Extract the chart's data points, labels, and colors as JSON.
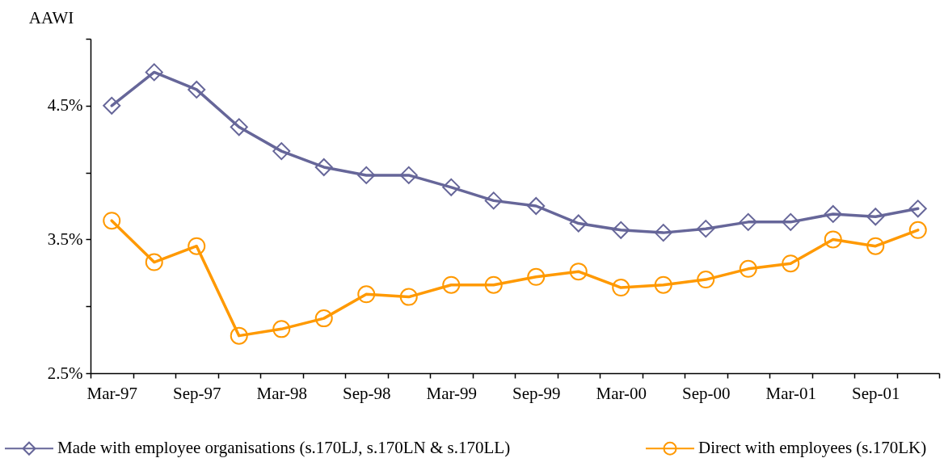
{
  "chart_data": {
    "type": "line",
    "ylabel": "AAWI",
    "categories": [
      "Mar-97",
      null,
      "Sep-97",
      null,
      "Mar-98",
      null,
      "Sep-98",
      null,
      "Mar-99",
      null,
      "Sep-99",
      null,
      "Mar-00",
      null,
      "Sep-00",
      null,
      "Mar-01",
      null,
      "Sep-01",
      null
    ],
    "series": [
      {
        "name": "Made with employee organisations (s.170LJ, s.170LN & s.170LL)",
        "color": "#666699",
        "marker": "diamond",
        "values": [
          4.5,
          4.75,
          4.62,
          4.34,
          4.16,
          4.04,
          3.98,
          3.98,
          3.89,
          3.79,
          3.75,
          3.62,
          3.57,
          3.55,
          3.58,
          3.63,
          3.63,
          3.69,
          3.67,
          3.73
        ]
      },
      {
        "name": "Direct with employees (s.170LK)",
        "color": "#ff9900",
        "marker": "circle",
        "values": [
          3.64,
          3.33,
          3.45,
          2.78,
          2.83,
          2.91,
          3.09,
          3.07,
          3.16,
          3.16,
          3.22,
          3.26,
          3.14,
          3.16,
          3.2,
          3.28,
          3.32,
          3.5,
          3.45,
          3.57
        ]
      }
    ],
    "ylim": [
      2.5,
      5.0
    ],
    "yticks": [
      {
        "value": 2.5,
        "label": "2.5%"
      },
      {
        "value": 3.0,
        "label": null
      },
      {
        "value": 3.5,
        "label": "3.5%"
      },
      {
        "value": 4.0,
        "label": null
      },
      {
        "value": 4.5,
        "label": "4.5%"
      },
      {
        "value": 5.0,
        "label": null
      }
    ],
    "legend": "bottom"
  }
}
